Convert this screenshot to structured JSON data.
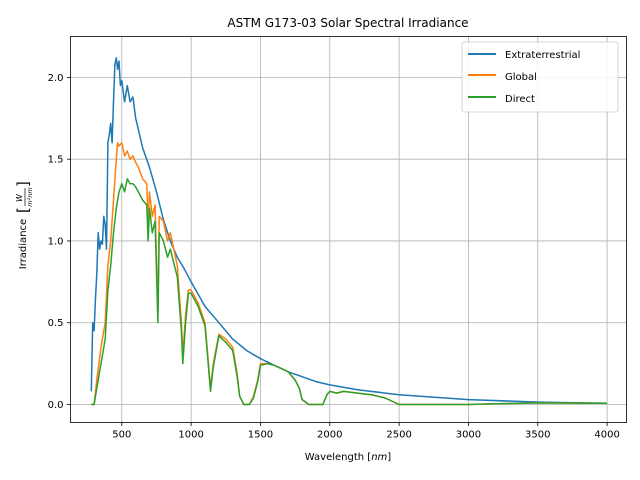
{
  "chart_data": {
    "type": "line",
    "title": "ASTM G173-03 Solar Spectral Irradiance",
    "xlabel": "Wavelength [nm]",
    "ylabel": "Irradiance [W/(m²·nm)]",
    "xlim": [
      130,
      4140
    ],
    "ylim": [
      -0.11,
      2.25
    ],
    "xticks": [
      500,
      1000,
      1500,
      2000,
      2500,
      3000,
      3500,
      4000
    ],
    "yticks": [
      0.0,
      0.5,
      1.0,
      1.5,
      2.0
    ],
    "xtick_labels": [
      "500",
      "1000",
      "1500",
      "2000",
      "2500",
      "3000",
      "3500",
      "4000"
    ],
    "ytick_labels": [
      "0.0",
      "0.5",
      "1.0",
      "1.5",
      "2.0"
    ],
    "grid": true,
    "legend_position": "top-right",
    "colors": {
      "extraterrestrial": "#1f77b4",
      "global": "#ff7f0e",
      "direct": "#2ca02c"
    },
    "series": [
      {
        "name": "Extraterrestrial",
        "color": "#1f77b4",
        "points": [
          [
            280,
            0.08
          ],
          [
            290,
            0.5
          ],
          [
            300,
            0.45
          ],
          [
            310,
            0.65
          ],
          [
            320,
            0.8
          ],
          [
            330,
            1.05
          ],
          [
            340,
            0.95
          ],
          [
            350,
            1.0
          ],
          [
            360,
            0.98
          ],
          [
            370,
            1.15
          ],
          [
            380,
            1.1
          ],
          [
            390,
            0.95
          ],
          [
            400,
            1.6
          ],
          [
            410,
            1.65
          ],
          [
            420,
            1.72
          ],
          [
            430,
            1.6
          ],
          [
            440,
            1.85
          ],
          [
            450,
            2.08
          ],
          [
            460,
            2.12
          ],
          [
            470,
            2.05
          ],
          [
            480,
            2.1
          ],
          [
            490,
            1.95
          ],
          [
            500,
            1.98
          ],
          [
            520,
            1.85
          ],
          [
            540,
            1.95
          ],
          [
            560,
            1.85
          ],
          [
            580,
            1.88
          ],
          [
            600,
            1.75
          ],
          [
            620,
            1.68
          ],
          [
            650,
            1.57
          ],
          [
            700,
            1.45
          ],
          [
            750,
            1.3
          ],
          [
            800,
            1.13
          ],
          [
            850,
            1.0
          ],
          [
            900,
            0.9
          ],
          [
            950,
            0.83
          ],
          [
            1000,
            0.75
          ],
          [
            1100,
            0.6
          ],
          [
            1200,
            0.5
          ],
          [
            1300,
            0.4
          ],
          [
            1400,
            0.33
          ],
          [
            1500,
            0.28
          ],
          [
            1600,
            0.24
          ],
          [
            1700,
            0.2
          ],
          [
            1800,
            0.17
          ],
          [
            1900,
            0.14
          ],
          [
            2000,
            0.12
          ],
          [
            2200,
            0.09
          ],
          [
            2500,
            0.06
          ],
          [
            3000,
            0.03
          ],
          [
            3500,
            0.015
          ],
          [
            4000,
            0.008
          ]
        ]
      },
      {
        "name": "Global",
        "color": "#ff7f0e",
        "points": [
          [
            280,
            0.0
          ],
          [
            300,
            0.0
          ],
          [
            320,
            0.15
          ],
          [
            350,
            0.35
          ],
          [
            380,
            0.5
          ],
          [
            400,
            0.85
          ],
          [
            420,
            1.0
          ],
          [
            440,
            1.25
          ],
          [
            460,
            1.5
          ],
          [
            470,
            1.6
          ],
          [
            480,
            1.58
          ],
          [
            500,
            1.6
          ],
          [
            520,
            1.52
          ],
          [
            540,
            1.55
          ],
          [
            560,
            1.5
          ],
          [
            580,
            1.52
          ],
          [
            600,
            1.48
          ],
          [
            620,
            1.45
          ],
          [
            650,
            1.38
          ],
          [
            680,
            1.35
          ],
          [
            690,
            1.1
          ],
          [
            700,
            1.3
          ],
          [
            720,
            1.15
          ],
          [
            740,
            1.22
          ],
          [
            760,
            0.55
          ],
          [
            770,
            1.15
          ],
          [
            800,
            1.12
          ],
          [
            830,
            1.0
          ],
          [
            850,
            1.05
          ],
          [
            900,
            0.85
          ],
          [
            930,
            0.5
          ],
          [
            940,
            0.3
          ],
          [
            960,
            0.55
          ],
          [
            980,
            0.7
          ],
          [
            1000,
            0.7
          ],
          [
            1050,
            0.62
          ],
          [
            1100,
            0.5
          ],
          [
            1120,
            0.3
          ],
          [
            1140,
            0.1
          ],
          [
            1160,
            0.25
          ],
          [
            1200,
            0.43
          ],
          [
            1250,
            0.4
          ],
          [
            1300,
            0.35
          ],
          [
            1330,
            0.2
          ],
          [
            1350,
            0.05
          ],
          [
            1380,
            0.0
          ],
          [
            1420,
            0.0
          ],
          [
            1450,
            0.05
          ],
          [
            1480,
            0.15
          ],
          [
            1500,
            0.25
          ],
          [
            1550,
            0.25
          ],
          [
            1600,
            0.24
          ],
          [
            1650,
            0.22
          ],
          [
            1700,
            0.2
          ],
          [
            1750,
            0.15
          ],
          [
            1780,
            0.1
          ],
          [
            1800,
            0.03
          ],
          [
            1850,
            0.0
          ],
          [
            1950,
            0.0
          ],
          [
            1980,
            0.06
          ],
          [
            2000,
            0.08
          ],
          [
            2050,
            0.07
          ],
          [
            2100,
            0.08
          ],
          [
            2200,
            0.07
          ],
          [
            2300,
            0.06
          ],
          [
            2400,
            0.04
          ],
          [
            2500,
            0.0
          ],
          [
            3000,
            0.0
          ],
          [
            3200,
            0.005
          ],
          [
            3500,
            0.01
          ],
          [
            4000,
            0.008
          ]
        ]
      },
      {
        "name": "Direct",
        "color": "#2ca02c",
        "points": [
          [
            280,
            0.0
          ],
          [
            300,
            0.0
          ],
          [
            320,
            0.1
          ],
          [
            350,
            0.25
          ],
          [
            380,
            0.4
          ],
          [
            400,
            0.7
          ],
          [
            420,
            0.85
          ],
          [
            440,
            1.05
          ],
          [
            460,
            1.2
          ],
          [
            480,
            1.3
          ],
          [
            500,
            1.35
          ],
          [
            520,
            1.3
          ],
          [
            540,
            1.38
          ],
          [
            560,
            1.35
          ],
          [
            580,
            1.35
          ],
          [
            600,
            1.33
          ],
          [
            620,
            1.3
          ],
          [
            650,
            1.25
          ],
          [
            680,
            1.22
          ],
          [
            690,
            1.0
          ],
          [
            700,
            1.2
          ],
          [
            720,
            1.05
          ],
          [
            740,
            1.12
          ],
          [
            760,
            0.5
          ],
          [
            770,
            1.05
          ],
          [
            800,
            1.0
          ],
          [
            830,
            0.9
          ],
          [
            850,
            0.95
          ],
          [
            900,
            0.78
          ],
          [
            930,
            0.45
          ],
          [
            940,
            0.25
          ],
          [
            960,
            0.5
          ],
          [
            980,
            0.68
          ],
          [
            1000,
            0.68
          ],
          [
            1050,
            0.6
          ],
          [
            1100,
            0.48
          ],
          [
            1120,
            0.28
          ],
          [
            1140,
            0.08
          ],
          [
            1160,
            0.23
          ],
          [
            1200,
            0.42
          ],
          [
            1250,
            0.38
          ],
          [
            1300,
            0.33
          ],
          [
            1330,
            0.18
          ],
          [
            1350,
            0.05
          ],
          [
            1380,
            0.0
          ],
          [
            1420,
            0.0
          ],
          [
            1450,
            0.04
          ],
          [
            1480,
            0.14
          ],
          [
            1500,
            0.24
          ],
          [
            1550,
            0.25
          ],
          [
            1600,
            0.24
          ],
          [
            1650,
            0.22
          ],
          [
            1700,
            0.2
          ],
          [
            1750,
            0.15
          ],
          [
            1780,
            0.1
          ],
          [
            1800,
            0.03
          ],
          [
            1850,
            0.0
          ],
          [
            1950,
            0.0
          ],
          [
            1980,
            0.06
          ],
          [
            2000,
            0.08
          ],
          [
            2050,
            0.07
          ],
          [
            2100,
            0.08
          ],
          [
            2200,
            0.07
          ],
          [
            2300,
            0.06
          ],
          [
            2400,
            0.04
          ],
          [
            2500,
            0.0
          ],
          [
            3000,
            0.0
          ],
          [
            3200,
            0.005
          ],
          [
            3500,
            0.01
          ],
          [
            4000,
            0.008
          ]
        ]
      }
    ]
  }
}
